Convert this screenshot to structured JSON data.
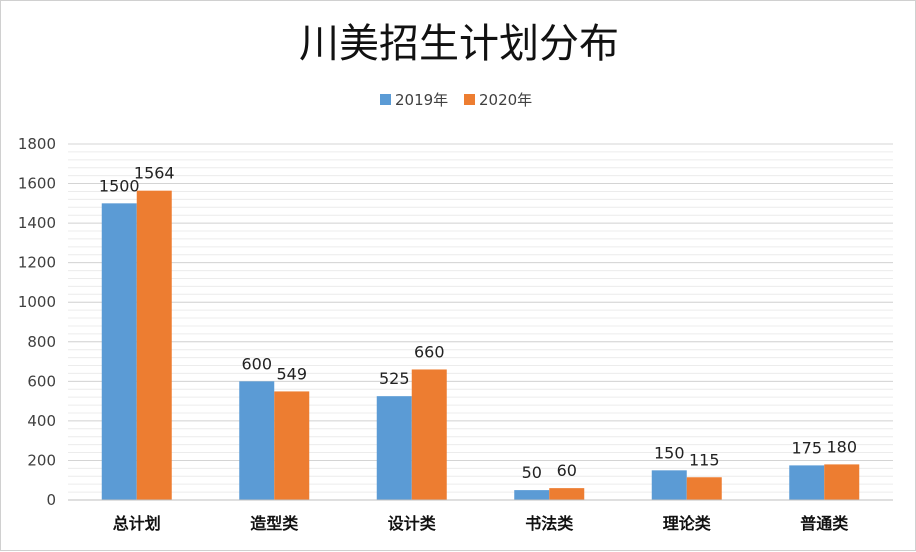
{
  "chart_data": {
    "type": "bar",
    "title": "川美招生计划分布",
    "categories": [
      "总计划",
      "造型类",
      "设计类",
      "书法类",
      "理论类",
      "普通类"
    ],
    "series": [
      {
        "name": "2019年",
        "values": [
          1500,
          600,
          525,
          50,
          150,
          175
        ],
        "color": "#5B9BD5"
      },
      {
        "name": "2020年",
        "values": [
          1564,
          549,
          660,
          60,
          115,
          180
        ],
        "color": "#ED7D31"
      }
    ],
    "ylim": [
      0,
      1800
    ],
    "yticks": [
      0,
      200,
      400,
      600,
      800,
      1000,
      1200,
      1400,
      1600,
      1800
    ],
    "grid": true,
    "legend": "top-center",
    "xlabel": "",
    "ylabel": ""
  }
}
